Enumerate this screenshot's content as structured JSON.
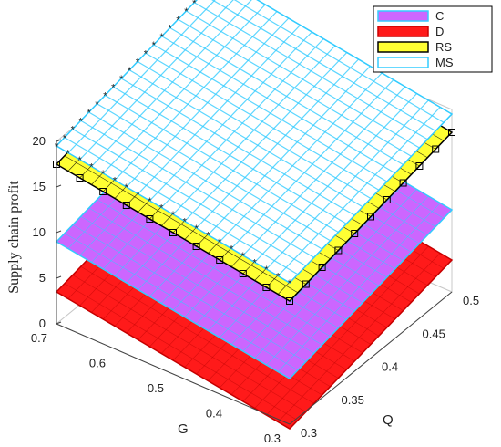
{
  "chart_data": {
    "type": "surface3d",
    "xlabel": "Q",
    "ylabel": "G",
    "zlabel": "Supply chain profit",
    "xlim": [
      0.3,
      0.5
    ],
    "ylim": [
      0.3,
      0.7
    ],
    "zlim": [
      0,
      20
    ],
    "x_ticks": [
      "0.3",
      "0.35",
      "0.4",
      "0.45",
      "0.5"
    ],
    "y_ticks": [
      "0.3",
      "0.4",
      "0.5",
      "0.6",
      "0.7"
    ],
    "z_ticks": [
      "0",
      "5",
      "10",
      "15",
      "20"
    ],
    "legend": {
      "position": "top-right"
    },
    "series": [
      {
        "name": "C",
        "color": "#cc66ff",
        "edge": "#33ccff",
        "z_corners": {
          "q03_g07": 9.0,
          "q05_g07": 13.0,
          "q05_g03": 9.0,
          "q03_g03": 5.0
        }
      },
      {
        "name": "D",
        "color": "#ff1a1a",
        "edge": "#cc0000",
        "z_corners": {
          "q03_g07": 3.5,
          "q05_g07": 7.5,
          "q05_g03": 3.5,
          "q03_g03": -0.5
        }
      },
      {
        "name": "RS",
        "color": "#ffff33",
        "edge": "#000000",
        "marker": "square",
        "z_corners": {
          "q03_g07": 17.5,
          "q05_g07": 21.5,
          "q05_g03": 17.5,
          "q03_g03": 13.5
        }
      },
      {
        "name": "MS",
        "color": "#ffffff",
        "edge": "#33ccff",
        "marker": "star",
        "z_corners": {
          "q03_g07": 19.5,
          "q05_g07": 23.5,
          "q05_g03": 19.5,
          "q03_g03": 15.5
        }
      }
    ]
  }
}
